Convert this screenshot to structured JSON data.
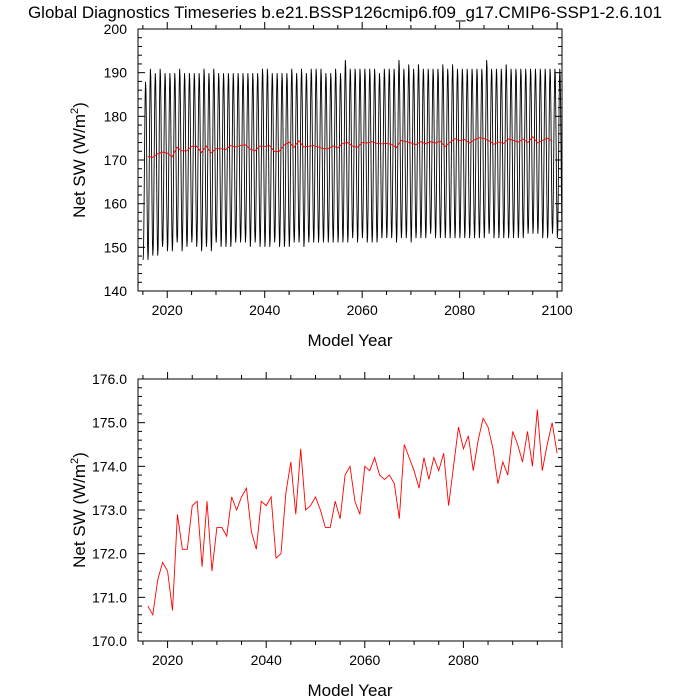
{
  "figure_title": "Global Diagnostics Timeseries b.e21.BSSP126cmip6.f09_g17.CMIP6-SSP1-2.6.101",
  "chart_data": [
    {
      "type": "line",
      "xlabel": "Model Year",
      "ylabel": "Net SW (W/m²)",
      "ylabel_base": "Net SW (W/m",
      "ylabel_sup": "2",
      "ylabel_end": ")",
      "xlim": [
        2014,
        2101
      ],
      "ylim": [
        140,
        200
      ],
      "xticks": [
        2020,
        2040,
        2060,
        2080,
        2100
      ],
      "yticks": [
        140,
        150,
        160,
        170,
        180,
        190,
        200
      ],
      "grid": false,
      "series": [
        {
          "color": "#000000",
          "description": "monthly values, seasonal cycle",
          "monthly": {
            "start_year": 2015,
            "end_year": 2100,
            "annual_peaks": [
              188,
              191,
              190,
              191,
              190,
              190,
              190,
              191,
              190,
              190,
              190,
              190,
              191,
              190,
              191,
              190,
              190,
              190,
              190,
              190,
              190,
              190,
              190,
              190,
              191,
              191,
              190,
              190,
              190,
              190,
              191,
              190,
              191,
              190,
              191,
              191,
              191,
              190,
              190,
              191,
              190,
              193,
              191,
              191,
              191,
              191,
              191,
              191,
              190,
              191,
              191,
              191,
              193,
              191,
              192,
              191,
              192,
              191,
              191,
              191,
              191,
              192,
              191,
              192,
              191,
              191,
              191,
              191,
              191,
              191,
              193,
              191,
              191,
              191,
              192,
              191,
              191,
              191,
              191,
              191,
              191,
              191,
              191,
              191,
              191,
              191
            ],
            "annual_troughs": [
              147,
              147,
              148,
              148,
              150,
              149,
              149,
              151,
              149,
              150,
              151,
              150,
              149,
              150,
              149,
              151,
              150,
              150,
              150,
              151,
              151,
              151,
              150,
              151,
              150,
              150,
              150,
              151,
              150,
              150,
              150,
              151,
              151,
              150,
              151,
              151,
              151,
              151,
              151,
              151,
              151,
              151,
              151,
              152,
              151,
              152,
              151,
              151,
              151,
              152,
              152,
              152,
              151,
              152,
              152,
              151,
              152,
              152,
              152,
              153,
              152,
              152,
              152,
              152,
              152,
              152,
              152,
              152,
              152,
              152,
              152,
              153,
              152,
              152,
              152,
              152,
              152,
              152,
              152,
              153,
              153,
              153,
              152,
              152,
              153,
              152
            ]
          }
        },
        {
          "color": "#ff0000",
          "description": "annual mean",
          "x": [
            2016,
            2017,
            2018,
            2019,
            2020,
            2021,
            2022,
            2023,
            2024,
            2025,
            2026,
            2027,
            2028,
            2029,
            2030,
            2031,
            2032,
            2033,
            2034,
            2035,
            2036,
            2037,
            2038,
            2039,
            2040,
            2041,
            2042,
            2043,
            2044,
            2045,
            2046,
            2047,
            2048,
            2049,
            2050,
            2051,
            2052,
            2053,
            2054,
            2055,
            2056,
            2057,
            2058,
            2059,
            2060,
            2061,
            2062,
            2063,
            2064,
            2065,
            2066,
            2067,
            2068,
            2069,
            2070,
            2071,
            2072,
            2073,
            2074,
            2075,
            2076,
            2077,
            2078,
            2079,
            2080,
            2081,
            2082,
            2083,
            2084,
            2085,
            2086,
            2087,
            2088,
            2089,
            2090,
            2091,
            2092,
            2093,
            2094,
            2095,
            2096,
            2097,
            2098,
            2099
          ],
          "values": [
            170.8,
            170.6,
            171.4,
            171.8,
            171.6,
            170.7,
            172.9,
            172.1,
            172.1,
            173.1,
            173.2,
            171.7,
            173.2,
            171.6,
            172.6,
            172.6,
            172.4,
            173.3,
            173.0,
            173.3,
            173.5,
            172.5,
            172.1,
            173.2,
            173.1,
            173.3,
            171.9,
            172.0,
            173.4,
            174.1,
            172.9,
            174.4,
            173.0,
            173.1,
            173.3,
            173.0,
            172.6,
            172.6,
            173.2,
            172.8,
            173.8,
            174.0,
            173.2,
            172.9,
            174.0,
            173.9,
            174.2,
            173.8,
            173.7,
            173.8,
            173.6,
            172.8,
            174.5,
            174.2,
            173.9,
            173.5,
            174.2,
            173.7,
            174.2,
            173.9,
            174.3,
            173.1,
            174.0,
            174.9,
            174.4,
            174.7,
            173.9,
            174.6,
            175.1,
            174.9,
            174.4,
            173.6,
            174.1,
            173.8,
            174.8,
            174.5,
            174.1,
            174.8,
            174.0,
            175.3,
            173.9,
            174.5,
            175.0,
            174.3
          ]
        }
      ]
    },
    {
      "type": "line",
      "xlabel": "Model Year",
      "ylabel": "Net SW (W/m²)",
      "ylabel_base": "Net SW (W/m",
      "ylabel_sup": "2",
      "ylabel_end": ")",
      "xlim": [
        2014,
        2100
      ],
      "ylim": [
        170.0,
        176.0
      ],
      "xticks": [
        2020,
        2040,
        2060,
        2080
      ],
      "yticks": [
        170.0,
        171.0,
        172.0,
        173.0,
        174.0,
        175.0,
        176.0
      ],
      "ytick_labels": [
        "170.0",
        "171.0",
        "172.0",
        "173.0",
        "174.0",
        "175.0",
        "176.0"
      ],
      "grid": false,
      "series": [
        {
          "color": "#ff0000",
          "description": "annual mean",
          "x": [
            2016,
            2017,
            2018,
            2019,
            2020,
            2021,
            2022,
            2023,
            2024,
            2025,
            2026,
            2027,
            2028,
            2029,
            2030,
            2031,
            2032,
            2033,
            2034,
            2035,
            2036,
            2037,
            2038,
            2039,
            2040,
            2041,
            2042,
            2043,
            2044,
            2045,
            2046,
            2047,
            2048,
            2049,
            2050,
            2051,
            2052,
            2053,
            2054,
            2055,
            2056,
            2057,
            2058,
            2059,
            2060,
            2061,
            2062,
            2063,
            2064,
            2065,
            2066,
            2067,
            2068,
            2069,
            2070,
            2071,
            2072,
            2073,
            2074,
            2075,
            2076,
            2077,
            2078,
            2079,
            2080,
            2081,
            2082,
            2083,
            2084,
            2085,
            2086,
            2087,
            2088,
            2089,
            2090,
            2091,
            2092,
            2093,
            2094,
            2095,
            2096,
            2097,
            2098,
            2099
          ],
          "values": [
            170.8,
            170.6,
            171.4,
            171.8,
            171.6,
            170.7,
            172.9,
            172.1,
            172.1,
            173.1,
            173.2,
            171.7,
            173.2,
            171.6,
            172.6,
            172.6,
            172.4,
            173.3,
            173.0,
            173.3,
            173.5,
            172.5,
            172.1,
            173.2,
            173.1,
            173.3,
            171.9,
            172.0,
            173.4,
            174.1,
            172.9,
            174.4,
            173.0,
            173.1,
            173.3,
            173.0,
            172.6,
            172.6,
            173.2,
            172.8,
            173.8,
            174.0,
            173.2,
            172.9,
            174.0,
            173.9,
            174.2,
            173.8,
            173.7,
            173.8,
            173.6,
            172.8,
            174.5,
            174.2,
            173.9,
            173.5,
            174.2,
            173.7,
            174.2,
            173.9,
            174.3,
            173.1,
            174.0,
            174.9,
            174.4,
            174.7,
            173.9,
            174.6,
            175.1,
            174.9,
            174.4,
            173.6,
            174.1,
            173.8,
            174.8,
            174.5,
            174.1,
            174.8,
            174.0,
            175.3,
            173.9,
            174.5,
            175.0,
            174.3
          ]
        }
      ]
    }
  ]
}
